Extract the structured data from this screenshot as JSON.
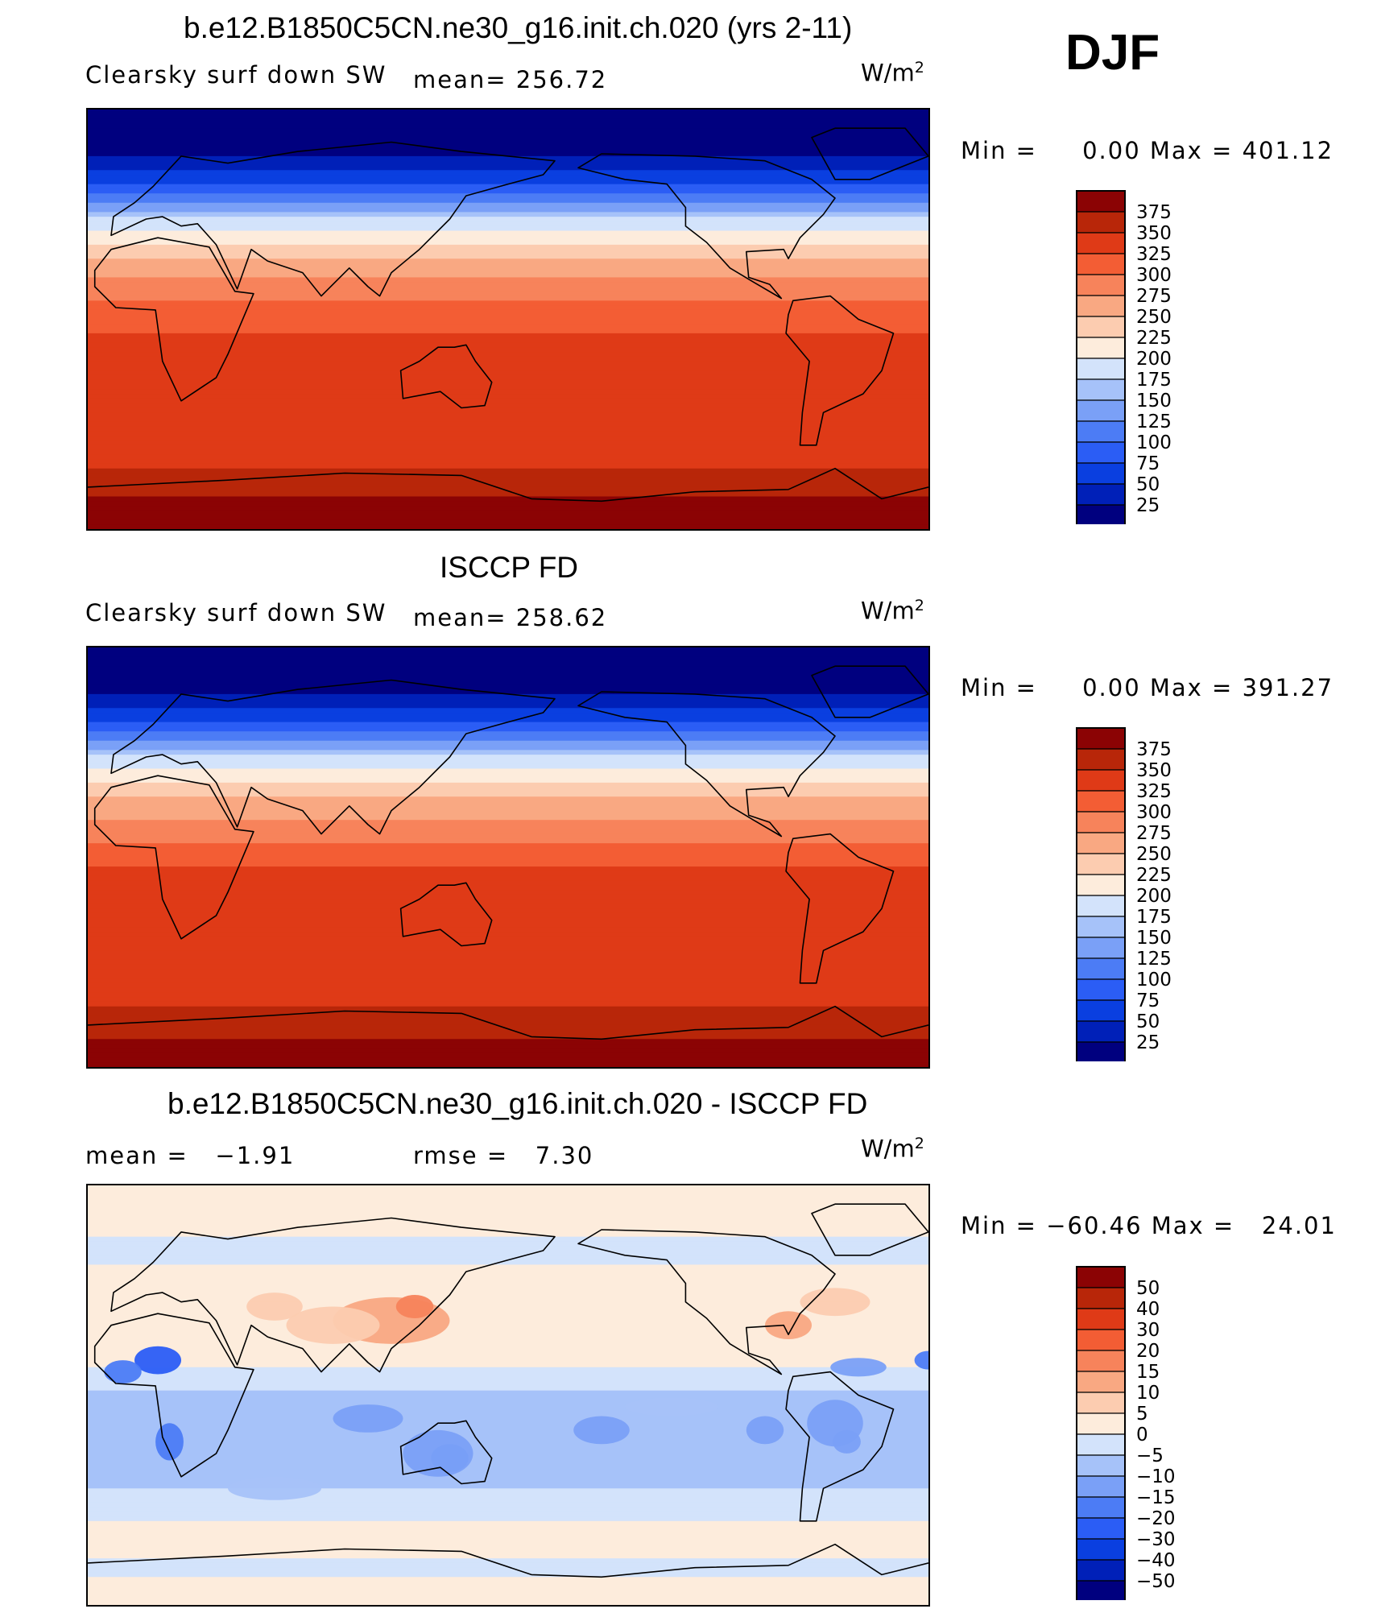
{
  "season": "DJF",
  "units_label": "W/m",
  "units_exp": "2",
  "colors": {
    "seq": [
      "#00007f",
      "#0020b8",
      "#0a3fe0",
      "#2b5df5",
      "#4c7cf5",
      "#7aa0f7",
      "#a6c2f9",
      "#d3e3fb",
      "#fdecdc",
      "#fcccb0",
      "#f9a882",
      "#f7835b",
      "#f35d34",
      "#df3a17",
      "#b82609",
      "#8b0304"
    ],
    "diff": [
      "#00007f",
      "#0020b8",
      "#0a3fe0",
      "#2b5df5",
      "#4c7cf5",
      "#7aa0f7",
      "#a6c2f9",
      "#d3e3fb",
      "#fdecdc",
      "#fcccb0",
      "#f9a882",
      "#f7835b",
      "#f35d34",
      "#df3a17",
      "#b82609",
      "#8b0304"
    ]
  },
  "panels": [
    {
      "id": "model",
      "title": "b.e12.B1850C5CN.ne30_g16.init.ch.020 (yrs 2-11)",
      "left_label": "Clearsky surf down SW",
      "stat_label": "mean=",
      "stat_value": "256.72",
      "min_label": "Min =",
      "min_value": "0.00",
      "max_label": "Max =",
      "max_value": "401.12",
      "legend_labels": [
        "375",
        "350",
        "325",
        "300",
        "275",
        "250",
        "225",
        "200",
        "175",
        "150",
        "125",
        "100",
        "75",
        "50",
        "25"
      ]
    },
    {
      "id": "obs",
      "title": "ISCCP FD",
      "left_label": "Clearsky surf down SW",
      "stat_label": "mean=",
      "stat_value": "258.62",
      "min_label": "Min =",
      "min_value": "0.00",
      "max_label": "Max =",
      "max_value": "391.27",
      "legend_labels": [
        "375",
        "350",
        "325",
        "300",
        "275",
        "250",
        "225",
        "200",
        "175",
        "150",
        "125",
        "100",
        "75",
        "50",
        "25"
      ]
    },
    {
      "id": "diff",
      "title": "b.e12.B1850C5CN.ne30_g16.init.ch.020 - ISCCP FD",
      "left_label": "mean =",
      "left_value": "−1.91",
      "stat_label": "rmse =",
      "stat_value": "7.30",
      "min_label": "Min =",
      "min_value": "−60.46",
      "max_label": "Max =",
      "max_value": "24.01",
      "legend_labels": [
        "50",
        "40",
        "30",
        "20",
        "15",
        "10",
        "5",
        "0",
        "−5",
        "−10",
        "−15",
        "−20",
        "−30",
        "−40",
        "−50"
      ]
    }
  ],
  "chart_data": [
    {
      "type": "heatmap",
      "title": "b.e12.B1850C5CN.ne30_g16.init.ch.020 (yrs 2-11)",
      "variable": "Clearsky surf down SW",
      "units": "W/m2",
      "mean": 256.72,
      "min": 0.0,
      "max": 401.12,
      "levels": [
        25,
        50,
        75,
        100,
        125,
        150,
        175,
        200,
        225,
        250,
        275,
        300,
        325,
        350,
        375
      ],
      "zonal_profile": {
        "lat": [
          90,
          75,
          60,
          50,
          40,
          30,
          20,
          10,
          0,
          -10,
          -20,
          -30,
          -40,
          -50,
          -60,
          -70,
          -80,
          -90
        ],
        "value": [
          0,
          10,
          60,
          130,
          195,
          235,
          270,
          295,
          315,
          330,
          345,
          350,
          345,
          330,
          340,
          360,
          385,
          390
        ]
      }
    },
    {
      "type": "heatmap",
      "title": "ISCCP FD",
      "variable": "Clearsky surf down SW",
      "units": "W/m2",
      "mean": 258.62,
      "min": 0.0,
      "max": 391.27,
      "levels": [
        25,
        50,
        75,
        100,
        125,
        150,
        175,
        200,
        225,
        250,
        275,
        300,
        325,
        350,
        375
      ],
      "zonal_profile": {
        "lat": [
          90,
          75,
          60,
          50,
          40,
          30,
          20,
          10,
          0,
          -10,
          -20,
          -30,
          -40,
          -50,
          -60,
          -70,
          -80,
          -90
        ],
        "value": [
          0,
          10,
          60,
          130,
          195,
          235,
          265,
          290,
          315,
          335,
          345,
          350,
          345,
          330,
          340,
          360,
          380,
          390
        ]
      }
    },
    {
      "type": "heatmap",
      "title": "b.e12.B1850C5CN.ne30_g16.init.ch.020 - ISCCP FD",
      "units": "W/m2",
      "mean": -1.91,
      "rmse": 7.3,
      "min": -60.46,
      "max": 24.01,
      "levels": [
        -50,
        -40,
        -30,
        -20,
        -15,
        -10,
        -5,
        0,
        5,
        10,
        15,
        20,
        30,
        40,
        50
      ],
      "zonal_profile": {
        "lat": [
          90,
          75,
          60,
          45,
          30,
          15,
          0,
          -15,
          -30,
          -45,
          -60,
          -75,
          -90
        ],
        "value": [
          3,
          1,
          -1,
          2,
          5,
          1,
          -6,
          -8,
          -7,
          -4,
          2,
          -1,
          3
        ]
      }
    }
  ]
}
